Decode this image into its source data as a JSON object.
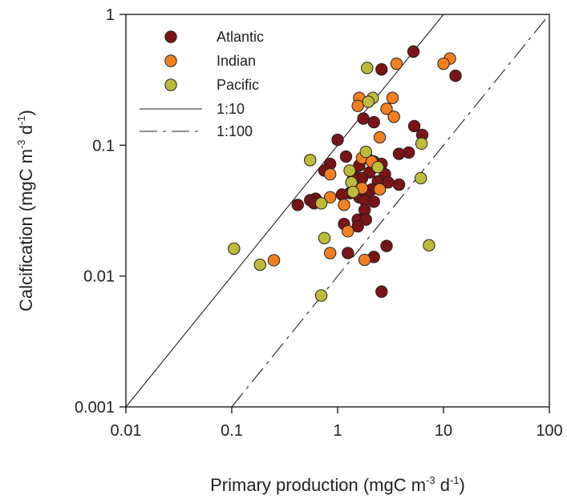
{
  "chart_data": {
    "type": "scatter",
    "x_scale": "log",
    "y_scale": "log",
    "xlim": [
      0.01,
      100
    ],
    "ylim": [
      0.001,
      1
    ],
    "grid": false,
    "legend_position": "top-left",
    "xlabel": {
      "text": "Primary production (mgC m",
      "sup1": "-3",
      "mid": " d",
      "sup2": "-1",
      "end": ")"
    },
    "ylabel": {
      "text": "Calcification (mgC m",
      "sup1": "-3",
      "mid": " d",
      "sup2": "-1",
      "end": ")"
    },
    "x_ticks": [
      {
        "value": 0.01,
        "label": "0.01"
      },
      {
        "value": 0.1,
        "label": "0.1"
      },
      {
        "value": 1,
        "label": "1"
      },
      {
        "value": 10,
        "label": "10"
      },
      {
        "value": 100,
        "label": "100"
      }
    ],
    "y_ticks": [
      {
        "value": 0.001,
        "label": "0.001"
      },
      {
        "value": 0.01,
        "label": "0.01"
      },
      {
        "value": 0.1,
        "label": "0.1"
      },
      {
        "value": 1,
        "label": "1"
      }
    ],
    "reference_lines": [
      {
        "name": "1:10",
        "ratio": 0.1,
        "style": "solid"
      },
      {
        "name": "1:100",
        "ratio": 0.01,
        "style": "dashed"
      }
    ],
    "series": [
      {
        "name": "Atlantic",
        "color": "#7b1416",
        "points": [
          {
            "x": 5.2,
            "y": 0.52
          },
          {
            "x": 2.6,
            "y": 0.38
          },
          {
            "x": 13,
            "y": 0.34
          },
          {
            "x": 1.75,
            "y": 0.16
          },
          {
            "x": 2.2,
            "y": 0.15
          },
          {
            "x": 5.3,
            "y": 0.14
          },
          {
            "x": 6.3,
            "y": 0.12
          },
          {
            "x": 1.0,
            "y": 0.11
          },
          {
            "x": 4.7,
            "y": 0.088
          },
          {
            "x": 3.8,
            "y": 0.086
          },
          {
            "x": 1.2,
            "y": 0.082
          },
          {
            "x": 1.9,
            "y": 0.08
          },
          {
            "x": 2.2,
            "y": 0.075
          },
          {
            "x": 0.85,
            "y": 0.072
          },
          {
            "x": 2.6,
            "y": 0.072
          },
          {
            "x": 1.6,
            "y": 0.07
          },
          {
            "x": 0.75,
            "y": 0.064
          },
          {
            "x": 2.0,
            "y": 0.062
          },
          {
            "x": 2.8,
            "y": 0.06
          },
          {
            "x": 1.5,
            "y": 0.057
          },
          {
            "x": 1.7,
            "y": 0.056
          },
          {
            "x": 1.4,
            "y": 0.055
          },
          {
            "x": 2.4,
            "y": 0.053
          },
          {
            "x": 3.0,
            "y": 0.052
          },
          {
            "x": 3.8,
            "y": 0.05
          },
          {
            "x": 2.1,
            "y": 0.046
          },
          {
            "x": 1.3,
            "y": 0.043
          },
          {
            "x": 1.1,
            "y": 0.042
          },
          {
            "x": 1.9,
            "y": 0.042
          },
          {
            "x": 1.6,
            "y": 0.04
          },
          {
            "x": 0.62,
            "y": 0.039
          },
          {
            "x": 0.55,
            "y": 0.038
          },
          {
            "x": 1.8,
            "y": 0.038
          },
          {
            "x": 2.2,
            "y": 0.037
          },
          {
            "x": 0.42,
            "y": 0.035
          },
          {
            "x": 0.6,
            "y": 0.036
          },
          {
            "x": 1.8,
            "y": 0.032
          },
          {
            "x": 1.55,
            "y": 0.027
          },
          {
            "x": 1.85,
            "y": 0.027
          },
          {
            "x": 1.15,
            "y": 0.025
          },
          {
            "x": 1.55,
            "y": 0.024
          },
          {
            "x": 2.9,
            "y": 0.017
          },
          {
            "x": 1.25,
            "y": 0.015
          },
          {
            "x": 2.2,
            "y": 0.014
          },
          {
            "x": 2.6,
            "y": 0.0076
          }
        ]
      },
      {
        "name": "Indian",
        "color": "#f47f20",
        "points": [
          {
            "x": 11.5,
            "y": 0.46
          },
          {
            "x": 10,
            "y": 0.42
          },
          {
            "x": 3.6,
            "y": 0.42
          },
          {
            "x": 1.6,
            "y": 0.23
          },
          {
            "x": 3.3,
            "y": 0.23
          },
          {
            "x": 1.55,
            "y": 0.2
          },
          {
            "x": 2.9,
            "y": 0.19
          },
          {
            "x": 3.4,
            "y": 0.165
          },
          {
            "x": 2.5,
            "y": 0.115
          },
          {
            "x": 1.7,
            "y": 0.08
          },
          {
            "x": 2.1,
            "y": 0.075
          },
          {
            "x": 0.85,
            "y": 0.06
          },
          {
            "x": 1.7,
            "y": 0.047
          },
          {
            "x": 2.5,
            "y": 0.046
          },
          {
            "x": 0.85,
            "y": 0.04
          },
          {
            "x": 1.15,
            "y": 0.035
          },
          {
            "x": 1.25,
            "y": 0.022
          },
          {
            "x": 0.85,
            "y": 0.015
          },
          {
            "x": 0.25,
            "y": 0.0132
          },
          {
            "x": 1.8,
            "y": 0.0133
          }
        ]
      },
      {
        "name": "Pacific",
        "color": "#bcbc3a",
        "points": [
          {
            "x": 1.9,
            "y": 0.39
          },
          {
            "x": 2.15,
            "y": 0.23
          },
          {
            "x": 1.95,
            "y": 0.215
          },
          {
            "x": 6.2,
            "y": 0.103
          },
          {
            "x": 1.85,
            "y": 0.089
          },
          {
            "x": 0.55,
            "y": 0.077
          },
          {
            "x": 2.4,
            "y": 0.068
          },
          {
            "x": 1.3,
            "y": 0.064
          },
          {
            "x": 6.1,
            "y": 0.056
          },
          {
            "x": 1.35,
            "y": 0.052
          },
          {
            "x": 1.4,
            "y": 0.044
          },
          {
            "x": 0.7,
            "y": 0.036
          },
          {
            "x": 0.75,
            "y": 0.0195
          },
          {
            "x": 7.3,
            "y": 0.0172
          },
          {
            "x": 0.105,
            "y": 0.0162
          },
          {
            "x": 0.185,
            "y": 0.0122
          },
          {
            "x": 0.7,
            "y": 0.0071
          }
        ]
      }
    ]
  }
}
